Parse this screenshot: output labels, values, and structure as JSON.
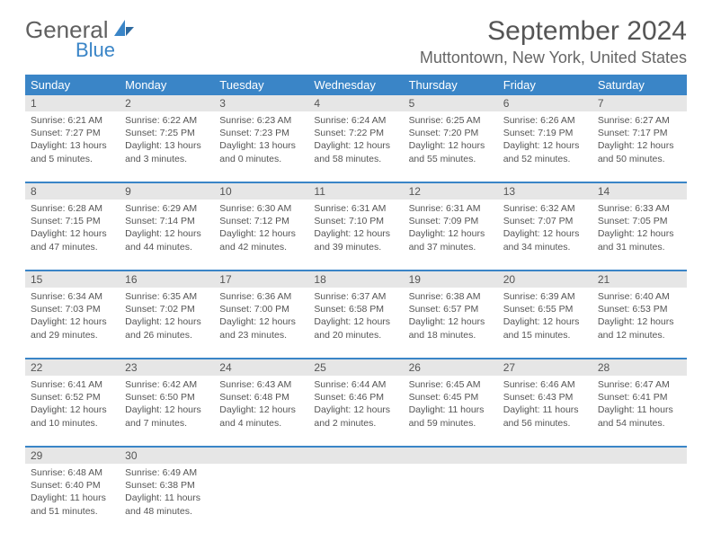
{
  "brand": {
    "name1": "General",
    "name2": "Blue"
  },
  "title": "September 2024",
  "location": "Muttontown, New York, United States",
  "colors": {
    "header_bg": "#3a85c7",
    "header_text": "#ffffff",
    "daynum_bg": "#e6e6e6",
    "body_text": "#555555",
    "divider": "#3a85c7",
    "page_bg": "#ffffff"
  },
  "weekday_labels": [
    "Sunday",
    "Monday",
    "Tuesday",
    "Wednesday",
    "Thursday",
    "Friday",
    "Saturday"
  ],
  "weeks": [
    [
      {
        "day": "1",
        "sunrise": "Sunrise: 6:21 AM",
        "sunset": "Sunset: 7:27 PM",
        "daylight1": "Daylight: 13 hours",
        "daylight2": "and 5 minutes."
      },
      {
        "day": "2",
        "sunrise": "Sunrise: 6:22 AM",
        "sunset": "Sunset: 7:25 PM",
        "daylight1": "Daylight: 13 hours",
        "daylight2": "and 3 minutes."
      },
      {
        "day": "3",
        "sunrise": "Sunrise: 6:23 AM",
        "sunset": "Sunset: 7:23 PM",
        "daylight1": "Daylight: 13 hours",
        "daylight2": "and 0 minutes."
      },
      {
        "day": "4",
        "sunrise": "Sunrise: 6:24 AM",
        "sunset": "Sunset: 7:22 PM",
        "daylight1": "Daylight: 12 hours",
        "daylight2": "and 58 minutes."
      },
      {
        "day": "5",
        "sunrise": "Sunrise: 6:25 AM",
        "sunset": "Sunset: 7:20 PM",
        "daylight1": "Daylight: 12 hours",
        "daylight2": "and 55 minutes."
      },
      {
        "day": "6",
        "sunrise": "Sunrise: 6:26 AM",
        "sunset": "Sunset: 7:19 PM",
        "daylight1": "Daylight: 12 hours",
        "daylight2": "and 52 minutes."
      },
      {
        "day": "7",
        "sunrise": "Sunrise: 6:27 AM",
        "sunset": "Sunset: 7:17 PM",
        "daylight1": "Daylight: 12 hours",
        "daylight2": "and 50 minutes."
      }
    ],
    [
      {
        "day": "8",
        "sunrise": "Sunrise: 6:28 AM",
        "sunset": "Sunset: 7:15 PM",
        "daylight1": "Daylight: 12 hours",
        "daylight2": "and 47 minutes."
      },
      {
        "day": "9",
        "sunrise": "Sunrise: 6:29 AM",
        "sunset": "Sunset: 7:14 PM",
        "daylight1": "Daylight: 12 hours",
        "daylight2": "and 44 minutes."
      },
      {
        "day": "10",
        "sunrise": "Sunrise: 6:30 AM",
        "sunset": "Sunset: 7:12 PM",
        "daylight1": "Daylight: 12 hours",
        "daylight2": "and 42 minutes."
      },
      {
        "day": "11",
        "sunrise": "Sunrise: 6:31 AM",
        "sunset": "Sunset: 7:10 PM",
        "daylight1": "Daylight: 12 hours",
        "daylight2": "and 39 minutes."
      },
      {
        "day": "12",
        "sunrise": "Sunrise: 6:31 AM",
        "sunset": "Sunset: 7:09 PM",
        "daylight1": "Daylight: 12 hours",
        "daylight2": "and 37 minutes."
      },
      {
        "day": "13",
        "sunrise": "Sunrise: 6:32 AM",
        "sunset": "Sunset: 7:07 PM",
        "daylight1": "Daylight: 12 hours",
        "daylight2": "and 34 minutes."
      },
      {
        "day": "14",
        "sunrise": "Sunrise: 6:33 AM",
        "sunset": "Sunset: 7:05 PM",
        "daylight1": "Daylight: 12 hours",
        "daylight2": "and 31 minutes."
      }
    ],
    [
      {
        "day": "15",
        "sunrise": "Sunrise: 6:34 AM",
        "sunset": "Sunset: 7:03 PM",
        "daylight1": "Daylight: 12 hours",
        "daylight2": "and 29 minutes."
      },
      {
        "day": "16",
        "sunrise": "Sunrise: 6:35 AM",
        "sunset": "Sunset: 7:02 PM",
        "daylight1": "Daylight: 12 hours",
        "daylight2": "and 26 minutes."
      },
      {
        "day": "17",
        "sunrise": "Sunrise: 6:36 AM",
        "sunset": "Sunset: 7:00 PM",
        "daylight1": "Daylight: 12 hours",
        "daylight2": "and 23 minutes."
      },
      {
        "day": "18",
        "sunrise": "Sunrise: 6:37 AM",
        "sunset": "Sunset: 6:58 PM",
        "daylight1": "Daylight: 12 hours",
        "daylight2": "and 20 minutes."
      },
      {
        "day": "19",
        "sunrise": "Sunrise: 6:38 AM",
        "sunset": "Sunset: 6:57 PM",
        "daylight1": "Daylight: 12 hours",
        "daylight2": "and 18 minutes."
      },
      {
        "day": "20",
        "sunrise": "Sunrise: 6:39 AM",
        "sunset": "Sunset: 6:55 PM",
        "daylight1": "Daylight: 12 hours",
        "daylight2": "and 15 minutes."
      },
      {
        "day": "21",
        "sunrise": "Sunrise: 6:40 AM",
        "sunset": "Sunset: 6:53 PM",
        "daylight1": "Daylight: 12 hours",
        "daylight2": "and 12 minutes."
      }
    ],
    [
      {
        "day": "22",
        "sunrise": "Sunrise: 6:41 AM",
        "sunset": "Sunset: 6:52 PM",
        "daylight1": "Daylight: 12 hours",
        "daylight2": "and 10 minutes."
      },
      {
        "day": "23",
        "sunrise": "Sunrise: 6:42 AM",
        "sunset": "Sunset: 6:50 PM",
        "daylight1": "Daylight: 12 hours",
        "daylight2": "and 7 minutes."
      },
      {
        "day": "24",
        "sunrise": "Sunrise: 6:43 AM",
        "sunset": "Sunset: 6:48 PM",
        "daylight1": "Daylight: 12 hours",
        "daylight2": "and 4 minutes."
      },
      {
        "day": "25",
        "sunrise": "Sunrise: 6:44 AM",
        "sunset": "Sunset: 6:46 PM",
        "daylight1": "Daylight: 12 hours",
        "daylight2": "and 2 minutes."
      },
      {
        "day": "26",
        "sunrise": "Sunrise: 6:45 AM",
        "sunset": "Sunset: 6:45 PM",
        "daylight1": "Daylight: 11 hours",
        "daylight2": "and 59 minutes."
      },
      {
        "day": "27",
        "sunrise": "Sunrise: 6:46 AM",
        "sunset": "Sunset: 6:43 PM",
        "daylight1": "Daylight: 11 hours",
        "daylight2": "and 56 minutes."
      },
      {
        "day": "28",
        "sunrise": "Sunrise: 6:47 AM",
        "sunset": "Sunset: 6:41 PM",
        "daylight1": "Daylight: 11 hours",
        "daylight2": "and 54 minutes."
      }
    ],
    [
      {
        "day": "29",
        "sunrise": "Sunrise: 6:48 AM",
        "sunset": "Sunset: 6:40 PM",
        "daylight1": "Daylight: 11 hours",
        "daylight2": "and 51 minutes."
      },
      {
        "day": "30",
        "sunrise": "Sunrise: 6:49 AM",
        "sunset": "Sunset: 6:38 PM",
        "daylight1": "Daylight: 11 hours",
        "daylight2": "and 48 minutes."
      },
      {
        "day": ""
      },
      {
        "day": ""
      },
      {
        "day": ""
      },
      {
        "day": ""
      },
      {
        "day": ""
      }
    ]
  ]
}
